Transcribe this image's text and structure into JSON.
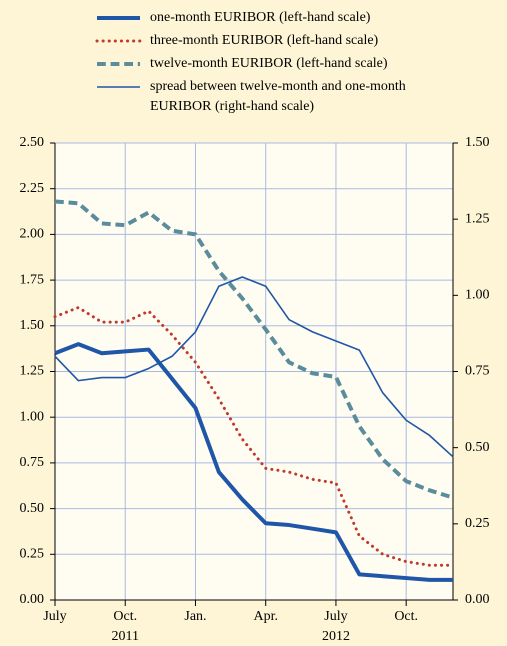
{
  "chart_data": {
    "type": "line",
    "x": [
      "2011-07",
      "2011-08",
      "2011-09",
      "2011-10",
      "2011-11",
      "2011-12",
      "2012-01",
      "2012-02",
      "2012-03",
      "2012-04",
      "2012-05",
      "2012-06",
      "2012-07",
      "2012-08",
      "2012-09",
      "2012-10",
      "2012-11",
      "2012-12"
    ],
    "xlim": [
      "2011-07",
      "2012-12"
    ],
    "xticks": [
      {
        "value": "2011-07",
        "label": "July"
      },
      {
        "value": "2011-10",
        "label": "Oct."
      },
      {
        "value": "2012-01",
        "label": "Jan."
      },
      {
        "value": "2012-04",
        "label": "Apr."
      },
      {
        "value": "2012-07",
        "label": "July"
      },
      {
        "value": "2012-10",
        "label": "Oct."
      }
    ],
    "year_labels": [
      {
        "value": "2011-10",
        "label": "2011"
      },
      {
        "value": "2012-07",
        "label": "2012"
      }
    ],
    "ylim": [
      0,
      2.5
    ],
    "yticks": [
      {
        "value": 0,
        "label": "0.00"
      },
      {
        "value": 0.25,
        "label": "0.25"
      },
      {
        "value": 0.5,
        "label": "0.50"
      },
      {
        "value": 0.75,
        "label": "0.75"
      },
      {
        "value": 1,
        "label": "1.00"
      },
      {
        "value": 1.25,
        "label": "1.25"
      },
      {
        "value": 1.5,
        "label": "1.50"
      },
      {
        "value": 1.75,
        "label": "1.75"
      },
      {
        "value": 2,
        "label": "2.00"
      },
      {
        "value": 2.25,
        "label": "2.25"
      },
      {
        "value": 2.5,
        "label": "2.50"
      }
    ],
    "y2lim": [
      0,
      1.5
    ],
    "y2ticks": [
      {
        "value": 0,
        "label": "0.00"
      },
      {
        "value": 0.25,
        "label": "0.25"
      },
      {
        "value": 0.5,
        "label": "0.50"
      },
      {
        "value": 0.75,
        "label": "0.75"
      },
      {
        "value": 1,
        "label": "1.00"
      },
      {
        "value": 1.25,
        "label": "1.25"
      },
      {
        "value": 1.5,
        "label": "1.50"
      }
    ],
    "grid": true,
    "legend": "top",
    "series": [
      {
        "name": "one-month EURIBOR (left-hand scale)",
        "color": "#1f56a8",
        "style": "solid",
        "line_width": 4,
        "values": [
          1.35,
          1.4,
          1.35,
          1.36,
          1.37,
          1.21,
          1.05,
          0.7,
          0.55,
          0.42,
          0.41,
          0.39,
          0.37,
          0.14,
          0.13,
          0.12,
          0.11,
          0.11
        ]
      },
      {
        "name": "three-month EURIBOR (left-hand scale)",
        "color": "#c0392b",
        "style": "dotted",
        "line_width": 3,
        "values": [
          1.55,
          1.6,
          1.52,
          1.52,
          1.58,
          1.45,
          1.3,
          1.1,
          0.88,
          0.72,
          0.7,
          0.66,
          0.64,
          0.35,
          0.25,
          0.21,
          0.19,
          0.19
        ]
      },
      {
        "name": "twelve-month EURIBOR (left-hand scale)",
        "color": "#5b8c9c",
        "style": "dashed",
        "line_width": 4,
        "values": [
          2.18,
          2.17,
          2.06,
          2.05,
          2.12,
          2.02,
          2.0,
          1.8,
          1.65,
          1.48,
          1.3,
          1.24,
          1.22,
          0.95,
          0.77,
          0.65,
          0.6,
          0.56
        ]
      },
      {
        "name": "spread between twelve-month and one-month EURIBOR (right-hand scale)",
        "color": "#1f56a8",
        "style": "solid",
        "line_width": 1.6,
        "axis": "y2",
        "values": [
          0.8,
          0.72,
          0.73,
          0.73,
          0.76,
          0.8,
          0.88,
          1.03,
          1.06,
          1.03,
          0.92,
          0.88,
          0.85,
          0.82,
          0.68,
          0.59,
          0.54,
          0.47
        ]
      }
    ]
  }
}
